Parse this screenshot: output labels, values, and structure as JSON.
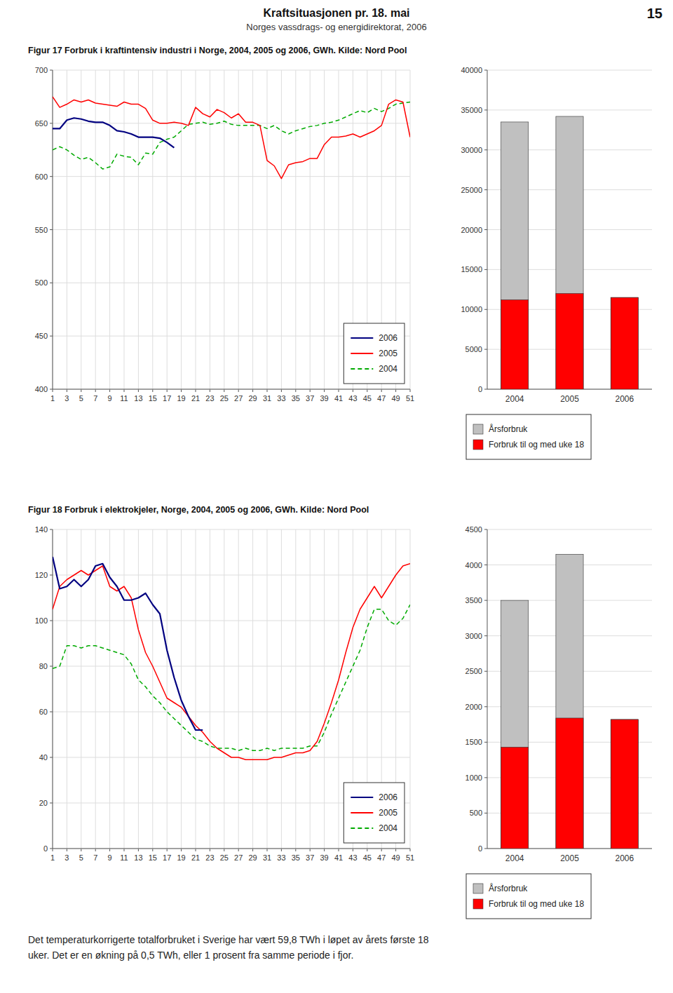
{
  "page_title": "Kraftsituasjonen pr. 18. mai",
  "page_subtitle": "Norges vassdrags- og energidirektorat, 2006",
  "page_number": "15",
  "footer_text": "Det temperaturkorrigerte totalforbruket i Sverige har vært 59,8 TWh i løpet av årets første 18\nuker. Det er en økning på 0,5 TWh, eller 1 prosent fra samme periode i fjor.",
  "chart_data": [
    {
      "type": "line",
      "title": "Figur 17 Forbruk i kraftintensiv industri i Norge, 2004, 2005 og 2006, GWh. Kilde: Nord Pool",
      "x": [
        1,
        2,
        3,
        4,
        5,
        6,
        7,
        8,
        9,
        10,
        11,
        12,
        13,
        14,
        15,
        16,
        17,
        18,
        19,
        20,
        21,
        22,
        23,
        24,
        25,
        26,
        27,
        28,
        29,
        30,
        31,
        32,
        33,
        34,
        35,
        36,
        37,
        38,
        39,
        40,
        41,
        42,
        43,
        44,
        45,
        46,
        47,
        48,
        49,
        50,
        51
      ],
      "xlim": [
        1,
        51
      ],
      "xticks": [
        1,
        3,
        5,
        7,
        9,
        11,
        13,
        15,
        17,
        19,
        21,
        23,
        25,
        27,
        29,
        31,
        33,
        35,
        37,
        39,
        41,
        43,
        45,
        47,
        49,
        51
      ],
      "ylim": [
        400,
        700
      ],
      "yticks": [
        400,
        450,
        500,
        550,
        600,
        650,
        700
      ],
      "grid": true,
      "legend": "lower right",
      "series": [
        {
          "name": "2006",
          "color": "#000080",
          "line_style": "solid",
          "values": [
            645,
            645,
            653,
            655,
            654,
            652,
            651,
            651,
            648,
            643,
            642,
            640,
            637,
            637,
            637,
            636,
            632,
            627,
            null,
            null,
            null,
            null,
            null,
            null,
            null,
            null,
            null,
            null,
            null,
            null,
            null,
            null,
            null,
            null,
            null,
            null,
            null,
            null,
            null,
            null,
            null,
            null,
            null,
            null,
            null,
            null,
            null,
            null,
            null,
            null,
            null
          ]
        },
        {
          "name": "2005",
          "color": "#FF0000",
          "line_style": "solid",
          "values": [
            675,
            665,
            668,
            672,
            670,
            672,
            669,
            668,
            667,
            666,
            670,
            668,
            668,
            664,
            653,
            650,
            650,
            651,
            650,
            648,
            665,
            659,
            656,
            663,
            660,
            655,
            659,
            651,
            651,
            648,
            615,
            610,
            598,
            611,
            613,
            614,
            617,
            617,
            630,
            637,
            637,
            638,
            640,
            637,
            640,
            643,
            648,
            668,
            672,
            670,
            637
          ]
        },
        {
          "name": "2004",
          "color": "#00AA00",
          "line_style": "dashed",
          "values": [
            625,
            628,
            625,
            620,
            616,
            618,
            613,
            607,
            609,
            621,
            619,
            618,
            611,
            622,
            621,
            632,
            635,
            637,
            643,
            649,
            650,
            651,
            649,
            650,
            652,
            649,
            648,
            648,
            648,
            648,
            645,
            648,
            643,
            640,
            643,
            645,
            647,
            648,
            650,
            651,
            653,
            656,
            659,
            662,
            660,
            664,
            661,
            664,
            668,
            669,
            670
          ]
        }
      ]
    },
    {
      "type": "bar",
      "categories": [
        "2004",
        "2005",
        "2006"
      ],
      "ylim": [
        0,
        40000
      ],
      "yticks": [
        0,
        5000,
        10000,
        15000,
        20000,
        25000,
        30000,
        35000,
        40000
      ],
      "grid": "y",
      "legend": "bottom",
      "series": [
        {
          "name": "Årsforbruk",
          "color": "#C0C0C0",
          "values": [
            33500,
            34200,
            11500
          ]
        },
        {
          "name": "Forbruk til og med uke 18",
          "color": "#FF0000",
          "values": [
            11200,
            12000,
            11500
          ]
        }
      ]
    },
    {
      "type": "line",
      "title": "Figur 18 Forbruk i elektrokjeler, Norge, 2004, 2005 og 2006, GWh. Kilde: Nord Pool",
      "x": [
        1,
        2,
        3,
        4,
        5,
        6,
        7,
        8,
        9,
        10,
        11,
        12,
        13,
        14,
        15,
        16,
        17,
        18,
        19,
        20,
        21,
        22,
        23,
        24,
        25,
        26,
        27,
        28,
        29,
        30,
        31,
        32,
        33,
        34,
        35,
        36,
        37,
        38,
        39,
        40,
        41,
        42,
        43,
        44,
        45,
        46,
        47,
        48,
        49,
        50,
        51
      ],
      "xlim": [
        1,
        51
      ],
      "xticks": [
        1,
        3,
        5,
        7,
        9,
        11,
        13,
        15,
        17,
        19,
        21,
        23,
        25,
        27,
        29,
        31,
        33,
        35,
        37,
        39,
        41,
        43,
        45,
        47,
        49,
        51
      ],
      "ylim": [
        0,
        140
      ],
      "yticks": [
        0,
        20,
        40,
        60,
        80,
        100,
        120,
        140
      ],
      "grid": true,
      "legend": "lower right",
      "series": [
        {
          "name": "2006",
          "color": "#000080",
          "line_style": "solid",
          "values": [
            128,
            114,
            115,
            118,
            115,
            118,
            124,
            125,
            119,
            115,
            109,
            109,
            110,
            112,
            107,
            103,
            87,
            75,
            65,
            58,
            52,
            52,
            null,
            null,
            null,
            null,
            null,
            null,
            null,
            null,
            null,
            null,
            null,
            null,
            null,
            null,
            null,
            null,
            null,
            null,
            null,
            null,
            null,
            null,
            null,
            null,
            null,
            null,
            null,
            null,
            null
          ]
        },
        {
          "name": "2005",
          "color": "#FF0000",
          "line_style": "solid",
          "values": [
            105,
            115,
            118,
            120,
            122,
            120,
            122,
            124,
            115,
            113,
            115,
            110,
            96,
            86,
            80,
            73,
            66,
            64,
            62,
            58,
            54,
            51,
            47,
            44,
            42,
            40,
            40,
            39,
            39,
            39,
            39,
            40,
            40,
            41,
            42,
            42,
            43,
            47,
            55,
            64,
            74,
            86,
            97,
            105,
            110,
            115,
            110,
            115,
            120,
            124,
            125
          ]
        },
        {
          "name": "2004",
          "color": "#00AA00",
          "line_style": "dashed",
          "values": [
            79,
            80,
            89,
            89,
            88,
            89,
            89,
            88,
            87,
            86,
            85,
            81,
            74,
            71,
            67,
            64,
            60,
            57,
            54,
            51,
            48,
            47,
            45,
            44,
            44,
            44,
            43,
            44,
            43,
            43,
            44,
            43,
            44,
            44,
            44,
            44,
            45,
            45,
            51,
            59,
            66,
            73,
            80,
            87,
            97,
            105,
            105,
            100,
            98,
            101,
            107
          ]
        }
      ]
    },
    {
      "type": "bar",
      "categories": [
        "2004",
        "2005",
        "2006"
      ],
      "ylim": [
        0,
        4500
      ],
      "yticks": [
        0,
        500,
        1000,
        1500,
        2000,
        2500,
        3000,
        3500,
        4000,
        4500
      ],
      "grid": "y",
      "legend": "bottom",
      "series": [
        {
          "name": "Årsforbruk",
          "color": "#C0C0C0",
          "values": [
            3500,
            4150,
            1820
          ]
        },
        {
          "name": "Forbruk til og med uke 18",
          "color": "#FF0000",
          "values": [
            1430,
            1840,
            1820
          ]
        }
      ]
    }
  ]
}
